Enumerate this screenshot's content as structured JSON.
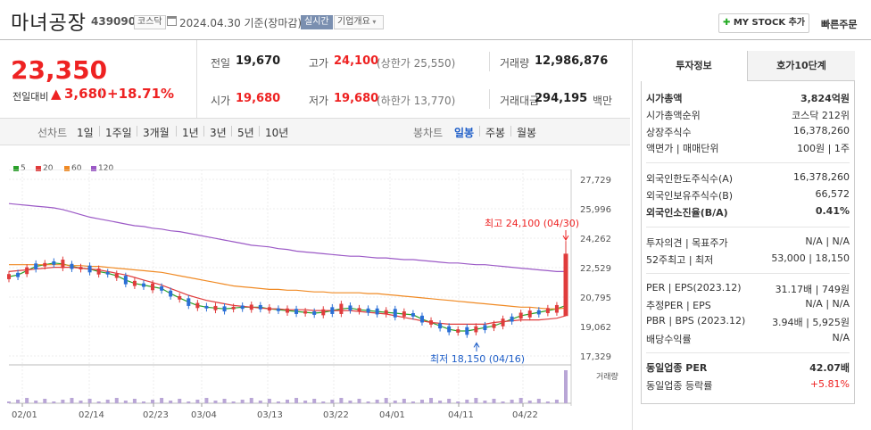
{
  "header": {
    "title": "마녀공장",
    "code": "439090",
    "market": "코스닥",
    "date": "2024.04.30 기준(장마감)",
    "realtime": "실시간",
    "company_overview": "기업개요",
    "mystock_label": "MY STOCK 추가",
    "quick_order": "빠른주문"
  },
  "quote": {
    "price": "23,350",
    "change_label": "전일대비",
    "change": "3,680",
    "change_pct": "+18.71%",
    "prev_label": "전일",
    "prev": "19,670",
    "high_label": "고가",
    "high": "24,100",
    "upper_limit": "(상한가 25,550)",
    "volume_label": "거래량",
    "volume": "12,986,876",
    "open_label": "시가",
    "open": "19,680",
    "low_label": "저가",
    "low": "19,680",
    "lower_limit": "(하한가 13,770)",
    "amount_label": "거래대금",
    "amount": "294,195",
    "amount_unit": "백만"
  },
  "period_tabs": {
    "label": "선차트",
    "items": [
      "1일",
      "1주일",
      "3개월",
      "1년",
      "3년",
      "5년",
      "10년"
    ]
  },
  "candle_tabs": {
    "label": "봉차트",
    "items": [
      "일봉",
      "주봉",
      "월봉"
    ],
    "active": "일봉"
  },
  "legend": [
    {
      "name": "5",
      "color": "#2aa02a"
    },
    {
      "name": "20",
      "color": "#e03c3c"
    },
    {
      "name": "60",
      "color": "#f08a24"
    },
    {
      "name": "120",
      "color": "#9b59c6"
    }
  ],
  "chart_data": {
    "type": "candlestick",
    "y_ticks": [
      "27,729",
      "25,996",
      "24,262",
      "22,529",
      "20,795",
      "19,062",
      "17,329"
    ],
    "ylim": [
      17329,
      27729
    ],
    "x_ticks": [
      "02/01",
      "02/14",
      "02/23",
      "03/04",
      "03/13",
      "03/22",
      "04/01",
      "04/11",
      "04/22"
    ],
    "annotation_high": "최고 24,100 (04/30)",
    "annotation_low": "최저 18,150 (04/16)",
    "volume_label": "거래량",
    "series": [
      {
        "name": "5",
        "values": [
          22000,
          22100,
          22350,
          22600,
          22700,
          22800,
          22750,
          22600,
          22500,
          22450,
          22300,
          22200,
          22050,
          21800,
          21600,
          21500,
          21400,
          21300,
          21000,
          20750,
          20500,
          20300,
          20200,
          20150,
          20100,
          20150,
          20200,
          20200,
          20200,
          20100,
          20050,
          20000,
          19950,
          19900,
          19850,
          19900,
          20000,
          20100,
          20150,
          20050,
          20000,
          19950,
          19900,
          19850,
          19800,
          19750,
          19500,
          19300,
          19100,
          18900,
          18800,
          18800,
          18900,
          19000,
          19100,
          19300,
          19500,
          19700,
          19800,
          19900,
          20000,
          20100,
          20300
        ]
      },
      {
        "name": "20",
        "values": [
          22300,
          22350,
          22400,
          22450,
          22500,
          22550,
          22550,
          22550,
          22500,
          22450,
          22400,
          22300,
          22200,
          22100,
          21950,
          21800,
          21650,
          21500,
          21300,
          21100,
          20900,
          20750,
          20600,
          20500,
          20400,
          20300,
          20250,
          20200,
          20150,
          20100,
          20100,
          20050,
          20050,
          20050,
          20000,
          20000,
          20000,
          20000,
          20000,
          19950,
          19900,
          19850,
          19800,
          19700,
          19600,
          19500,
          19400,
          19300,
          19250,
          19200,
          19200,
          19200,
          19200,
          19200,
          19300,
          19350,
          19400,
          19450,
          19450,
          19450,
          19500,
          19550,
          19700
        ]
      },
      {
        "name": "60",
        "values": [
          22700,
          22700,
          22700,
          22700,
          22700,
          22700,
          22700,
          22650,
          22650,
          22600,
          22600,
          22550,
          22500,
          22450,
          22400,
          22350,
          22300,
          22250,
          22150,
          22050,
          21950,
          21850,
          21750,
          21650,
          21550,
          21450,
          21400,
          21350,
          21300,
          21250,
          21250,
          21200,
          21200,
          21150,
          21100,
          21100,
          21050,
          21050,
          21050,
          21050,
          21000,
          21000,
          20950,
          20900,
          20850,
          20800,
          20750,
          20700,
          20650,
          20600,
          20550,
          20500,
          20450,
          20400,
          20350,
          20300,
          20250,
          20200,
          20200,
          20150,
          20100,
          20100,
          20150
        ]
      },
      {
        "name": "120",
        "values": [
          26300,
          26250,
          26200,
          26150,
          26100,
          26050,
          25950,
          25800,
          25650,
          25500,
          25400,
          25300,
          25200,
          25100,
          25000,
          24950,
          24850,
          24800,
          24700,
          24650,
          24550,
          24450,
          24350,
          24250,
          24150,
          24050,
          23950,
          23850,
          23800,
          23750,
          23650,
          23600,
          23500,
          23450,
          23400,
          23350,
          23300,
          23250,
          23200,
          23200,
          23150,
          23100,
          23100,
          23050,
          23000,
          23000,
          22950,
          22900,
          22850,
          22800,
          22800,
          22750,
          22700,
          22700,
          22650,
          22600,
          22550,
          22500,
          22450,
          22400,
          22350,
          22300,
          22300
        ]
      }
    ]
  },
  "sidebar": {
    "tab_invest": "투자정보",
    "tab_orderbook": "호가10단계",
    "rows": [
      {
        "k": "시가총액",
        "v": "3,824억원",
        "bold": true
      },
      {
        "k": "시가총액순위",
        "v": "코스닥 212위"
      },
      {
        "k": "상장주식수",
        "v": "16,378,260"
      },
      {
        "k": "액면가 | 매매단위",
        "v": "100원 | 1주"
      },
      {
        "k": "외국인한도주식수(A)",
        "v": "16,378,260"
      },
      {
        "k": "외국인보유주식수(B)",
        "v": "66,572"
      },
      {
        "k": "외국인소진율(B/A)",
        "v": "0.41%",
        "bold": true
      },
      {
        "k": "투자의견 | 목표주가",
        "v": "N/A | N/A"
      },
      {
        "k": "52주최고 | 최저",
        "v": "53,000 | 18,150"
      },
      {
        "k": "PER | EPS(2023.12)",
        "v": "31.17배 | 749원"
      },
      {
        "k": "추정PER | EPS",
        "v": "N/A | N/A"
      },
      {
        "k": "PBR | BPS (2023.12)",
        "v": "3.94배 | 5,925원"
      },
      {
        "k": "배당수익률",
        "v": "N/A"
      },
      {
        "k": "동일업종 PER",
        "v": "42.07배",
        "bold": true
      },
      {
        "k": "동일업종 등락률",
        "v": "+5.81%",
        "red": true
      }
    ]
  }
}
